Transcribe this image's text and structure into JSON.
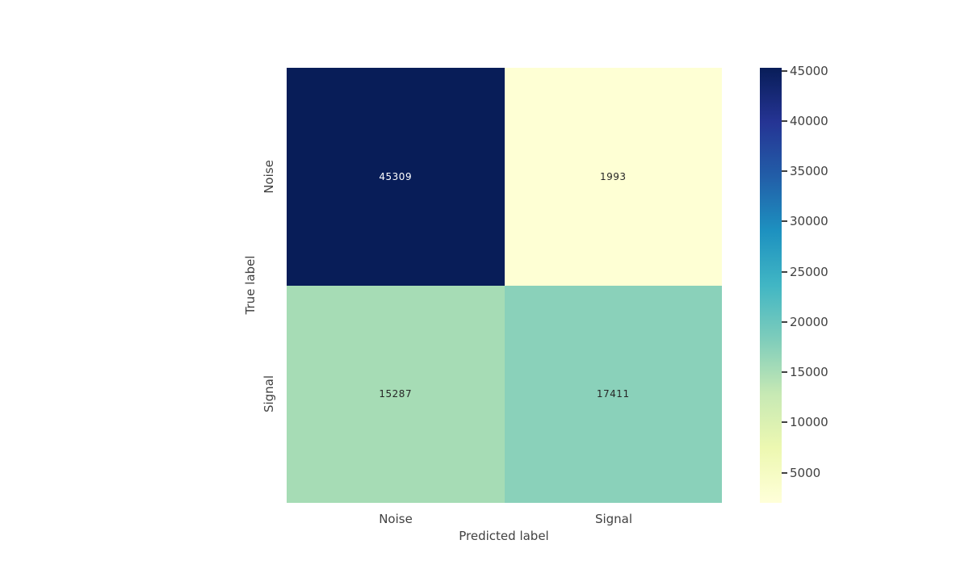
{
  "figure": {
    "background": "#ffffff",
    "text_color": "#414141"
  },
  "chart_data": {
    "type": "heatmap",
    "title": "",
    "xlabel": "Predicted label",
    "ylabel": "True label",
    "x_categories": [
      "Noise",
      "Signal"
    ],
    "y_categories": [
      "Noise",
      "Signal"
    ],
    "rows": [
      [
        45309,
        1993
      ],
      [
        15287,
        17411
      ]
    ],
    "color_range": [
      1993,
      45309
    ],
    "colormap": "YlGnBu",
    "grid": false,
    "legend_position": "right-colorbar",
    "annotated": true
  },
  "axes": {
    "xlabel": "Predicted label",
    "ylabel": "True label",
    "x_ticks": [
      "Noise",
      "Signal"
    ],
    "y_ticks": [
      "Noise",
      "Signal"
    ]
  },
  "cells": [
    {
      "value": "45309",
      "bg": "#081d58",
      "fg": "#ffffff"
    },
    {
      "value": "1993",
      "bg": "#feffd4",
      "fg": "#262626"
    },
    {
      "value": "15287",
      "bg": "#a6dcb5",
      "fg": "#262626"
    },
    {
      "value": "17411",
      "bg": "#8ad1ba",
      "fg": "#262626"
    }
  ],
  "colorbar": {
    "tick_values": [
      45000,
      40000,
      35000,
      30000,
      25000,
      20000,
      15000,
      10000,
      5000
    ],
    "tick_labels": [
      "45000",
      "40000",
      "35000",
      "30000",
      "25000",
      "20000",
      "15000",
      "10000",
      "5000"
    ],
    "gradient_top_to_bottom": [
      "#081d58",
      "#253494",
      "#225ea8",
      "#1d91c0",
      "#41b6c4",
      "#7fcdbb",
      "#c7e9b4",
      "#edf8b1",
      "#ffffd9"
    ]
  }
}
